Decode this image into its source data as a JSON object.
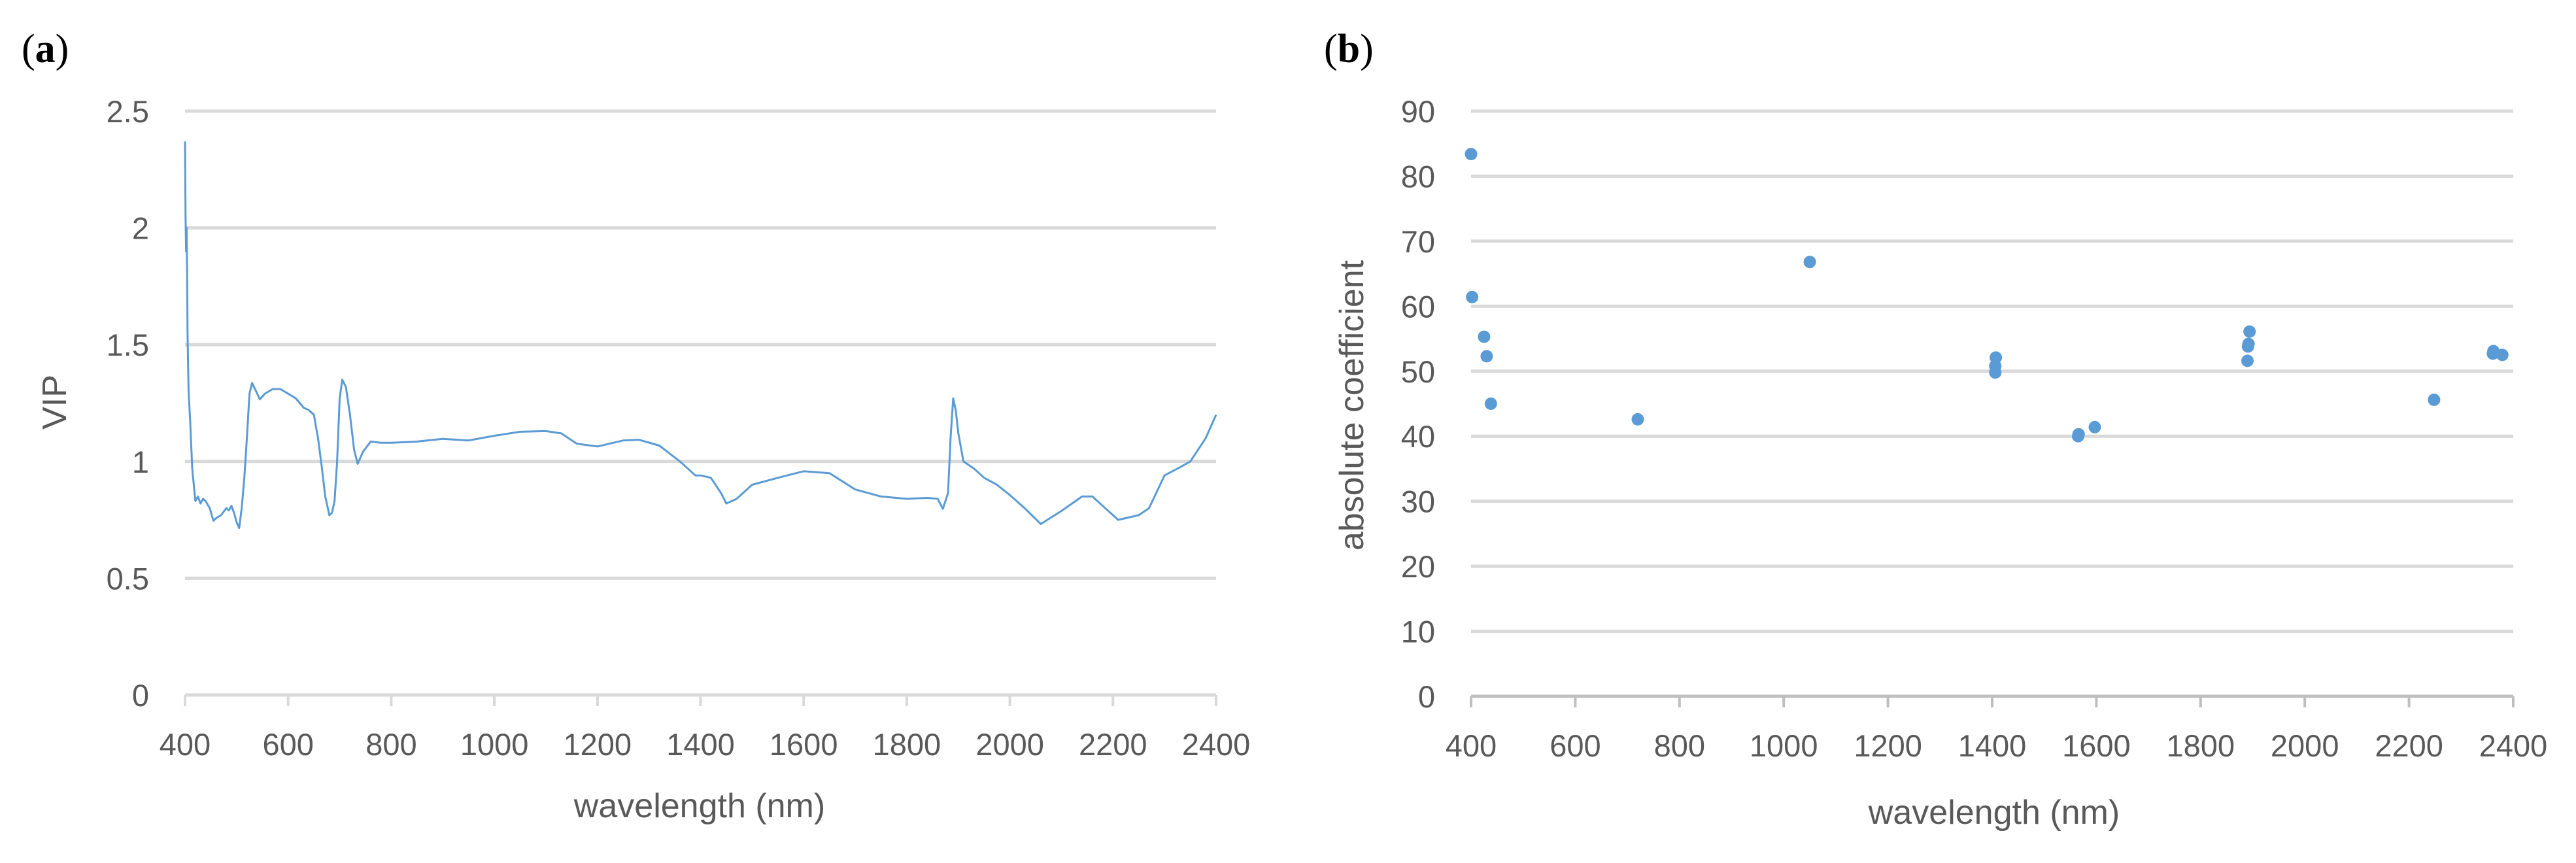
{
  "chart_data": [
    {
      "panel": "(a)",
      "type": "line",
      "title": "",
      "xlabel": "wavelength (nm)",
      "ylabel": "VIP",
      "xlim": [
        400,
        2400
      ],
      "ylim": [
        0,
        2.5
      ],
      "xticks": [
        400,
        600,
        800,
        1000,
        1200,
        1400,
        1600,
        1800,
        2000,
        2200,
        2400
      ],
      "yticks": [
        0,
        0.5,
        1,
        1.5,
        2,
        2.5
      ],
      "ytick_labels": [
        "0",
        "0.5",
        "1",
        "1.5",
        "2",
        "2.5"
      ],
      "grid": true,
      "legend": null,
      "color": "#5B9BD5",
      "series": [
        {
          "name": "VIP",
          "x": [
            400,
            401,
            402,
            403,
            404,
            405,
            406,
            407,
            410,
            414,
            420,
            425,
            430,
            435,
            440,
            448,
            455,
            462,
            470,
            480,
            485,
            490,
            495,
            500,
            505,
            510,
            515,
            520,
            525,
            530,
            538,
            545,
            555,
            570,
            585,
            600,
            615,
            630,
            640,
            650,
            658,
            665,
            672,
            680,
            685,
            690,
            695,
            700,
            705,
            712,
            720,
            728,
            735,
            745,
            760,
            780,
            800,
            850,
            900,
            950,
            1000,
            1050,
            1100,
            1130,
            1160,
            1200,
            1250,
            1280,
            1320,
            1360,
            1390,
            1400,
            1420,
            1440,
            1450,
            1470,
            1500,
            1550,
            1600,
            1650,
            1700,
            1750,
            1800,
            1840,
            1860,
            1870,
            1880,
            1885,
            1890,
            1895,
            1900,
            1910,
            1930,
            1950,
            1975,
            2000,
            2030,
            2060,
            2100,
            2140,
            2160,
            2180,
            2210,
            2250,
            2270,
            2300,
            2330,
            2350,
            2380,
            2400
          ],
          "y": [
            2.37,
            2.05,
            1.9,
            2.0,
            1.8,
            1.54,
            1.41,
            1.3,
            1.17,
            0.97,
            0.83,
            0.85,
            0.82,
            0.84,
            0.83,
            0.8,
            0.746,
            0.76,
            0.77,
            0.8,
            0.79,
            0.81,
            0.78,
            0.74,
            0.715,
            0.8,
            0.93,
            1.1,
            1.29,
            1.336,
            1.3,
            1.266,
            1.29,
            1.31,
            1.31,
            1.29,
            1.27,
            1.23,
            1.22,
            1.2,
            1.1,
            0.98,
            0.85,
            0.77,
            0.78,
            0.83,
            1.0,
            1.27,
            1.35,
            1.32,
            1.2,
            1.05,
            0.99,
            1.04,
            1.085,
            1.08,
            1.08,
            1.085,
            1.097,
            1.09,
            1.11,
            1.127,
            1.13,
            1.12,
            1.076,
            1.064,
            1.09,
            1.093,
            1.068,
            1.0,
            0.94,
            0.94,
            0.93,
            0.864,
            0.82,
            0.84,
            0.9,
            0.93,
            0.958,
            0.95,
            0.88,
            0.85,
            0.84,
            0.844,
            0.84,
            0.797,
            0.864,
            1.1,
            1.27,
            1.22,
            1.12,
            1.0,
            0.97,
            0.93,
            0.9,
            0.856,
            0.797,
            0.732,
            0.788,
            0.85,
            0.85,
            0.81,
            0.75,
            0.77,
            0.8,
            0.94,
            0.975,
            1.0,
            1.1,
            1.2
          ]
        }
      ]
    },
    {
      "panel": "(b)",
      "type": "scatter",
      "title": "",
      "xlabel": "wavelength (nm)",
      "ylabel": "absolute coefficient",
      "xlim": [
        400,
        2400
      ],
      "ylim": [
        0,
        90
      ],
      "xticks": [
        400,
        600,
        800,
        1000,
        1200,
        1400,
        1600,
        1800,
        2000,
        2200,
        2400
      ],
      "yticks": [
        0,
        10,
        20,
        30,
        40,
        50,
        60,
        70,
        80,
        90
      ],
      "grid": true,
      "legend": null,
      "color": "#5B9BD5",
      "series": [
        {
          "name": "absolute coefficient",
          "x": [
            400,
            402,
            425,
            430,
            438,
            720,
            1050,
            1406,
            1406,
            1407,
            1565,
            1566,
            1597,
            1890,
            1891,
            1892,
            1894,
            2248,
            2361,
            2362,
            2379
          ],
          "y": [
            83.4,
            61.4,
            55.3,
            52.3,
            45.0,
            42.6,
            66.8,
            49.8,
            50.8,
            52.1,
            40.0,
            40.3,
            41.4,
            51.6,
            53.8,
            54.2,
            56.1,
            45.6,
            52.7,
            53.1,
            52.5
          ]
        }
      ]
    }
  ],
  "panels": {
    "a": {
      "label_paren_open": "(",
      "label_letter": "a",
      "label_paren_close": ")",
      "ylabel": "VIP",
      "xlabel": "wavelength (nm)"
    },
    "b": {
      "label_paren_open": "(",
      "label_letter": "b",
      "label_paren_close": ")",
      "ylabel": "absolute coefficient",
      "xlabel": "wavelength (nm)"
    }
  }
}
